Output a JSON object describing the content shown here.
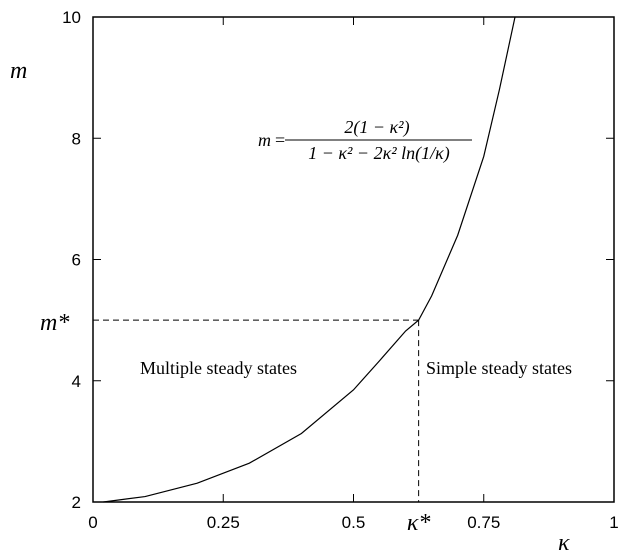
{
  "chart_data": {
    "type": "line",
    "title": "",
    "xlabel": "κ",
    "ylabel": "m",
    "xlim": [
      0,
      1
    ],
    "ylim": [
      2,
      10
    ],
    "x_ticks": [
      0,
      0.25,
      0.5,
      0.75,
      1
    ],
    "x_tick_labels": [
      "0",
      "0.25",
      "0.5",
      "0.75",
      "1"
    ],
    "y_ticks": [
      2,
      4,
      6,
      8,
      10
    ],
    "y_tick_labels": [
      "2",
      "4",
      "6",
      "8",
      "10"
    ],
    "grid": false,
    "series": [
      {
        "formula": {
          "lhs": "m",
          "numerator": "2(1 − κ²)",
          "denominator": "1 − κ² − 2κ² ln(1/κ)"
        },
        "x": [
          0.02,
          0.1,
          0.2,
          0.3,
          0.4,
          0.5,
          0.55,
          0.6,
          0.625,
          0.65,
          0.7,
          0.75,
          0.78,
          0.8,
          0.81
        ],
        "y": [
          2.0,
          2.09,
          2.31,
          2.64,
          3.13,
          3.85,
          4.33,
          4.82,
          5.0,
          5.4,
          6.4,
          7.7,
          8.8,
          9.6,
          10.0
        ]
      }
    ],
    "critical_point": {
      "x": 0.625,
      "y": 5.0,
      "x_label": "κ*",
      "y_label": "m*"
    },
    "annotations": {
      "left_region": "Multiple steady states",
      "right_region": "Simple steady states"
    }
  }
}
